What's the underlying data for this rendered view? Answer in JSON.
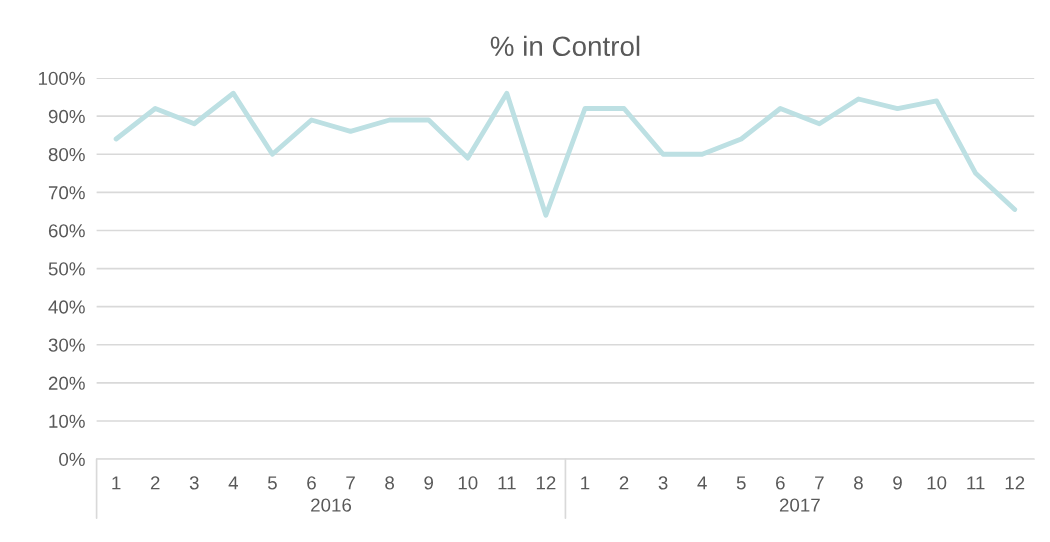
{
  "chart_data": {
    "type": "line",
    "title": "% in Control",
    "categories": [
      "1",
      "2",
      "3",
      "4",
      "5",
      "6",
      "7",
      "8",
      "9",
      "10",
      "11",
      "12",
      "1",
      "2",
      "3",
      "4",
      "5",
      "6",
      "7",
      "8",
      "9",
      "10",
      "11",
      "12"
    ],
    "series": [
      {
        "color": "#bde0e3",
        "values": [
          84,
          92,
          88,
          96,
          80,
          89,
          86,
          89,
          89,
          79,
          96,
          64,
          92,
          92,
          80,
          80,
          84,
          92,
          88,
          94.5,
          92,
          94,
          75,
          65.5
        ]
      }
    ],
    "annotations": [
      "2016",
      "2017"
    ],
    "ylim": [
      0,
      100
    ],
    "yticks": [
      {
        "value": 0,
        "label": "0%"
      },
      {
        "value": 10,
        "label": "10%"
      },
      {
        "value": 20,
        "label": "20%"
      },
      {
        "value": 30,
        "label": "30%"
      },
      {
        "value": 40,
        "label": "40%"
      },
      {
        "value": 50,
        "label": "50%"
      },
      {
        "value": 60,
        "label": "60%"
      },
      {
        "value": 70,
        "label": "70%"
      },
      {
        "value": 80,
        "label": "80%"
      },
      {
        "value": 90,
        "label": "90%"
      },
      {
        "value": 100,
        "label": "100%"
      }
    ],
    "grid": "y",
    "marker": "none",
    "line_style": "solid",
    "legend": false
  }
}
